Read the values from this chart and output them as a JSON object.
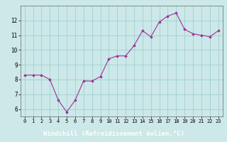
{
  "x": [
    0,
    1,
    2,
    3,
    4,
    5,
    6,
    7,
    8,
    9,
    10,
    11,
    12,
    13,
    14,
    15,
    16,
    17,
    18,
    19,
    20,
    21,
    22,
    23
  ],
  "y": [
    8.3,
    8.3,
    8.3,
    8.0,
    6.6,
    5.8,
    6.6,
    7.9,
    7.9,
    8.2,
    9.4,
    9.6,
    9.6,
    10.3,
    11.3,
    10.9,
    11.9,
    12.3,
    12.5,
    11.4,
    11.1,
    11.0,
    10.9,
    11.3
  ],
  "line_color": "#993399",
  "marker": "D",
  "marker_size": 1.8,
  "bg_color": "#cce8e8",
  "grid_color": "#99cccc",
  "xlabel": "Windchill (Refroidissement éolien,°C)",
  "xlabel_color": "#ffffff",
  "xlabel_bg": "#9966cc",
  "tick_color": "#000000",
  "ylim": [
    5.5,
    13.0
  ],
  "xlim": [
    -0.5,
    23.5
  ],
  "yticks": [
    6,
    7,
    8,
    9,
    10,
    11,
    12
  ],
  "xticks": [
    0,
    1,
    2,
    3,
    4,
    5,
    6,
    7,
    8,
    9,
    10,
    11,
    12,
    13,
    14,
    15,
    16,
    17,
    18,
    19,
    20,
    21,
    22,
    23
  ]
}
